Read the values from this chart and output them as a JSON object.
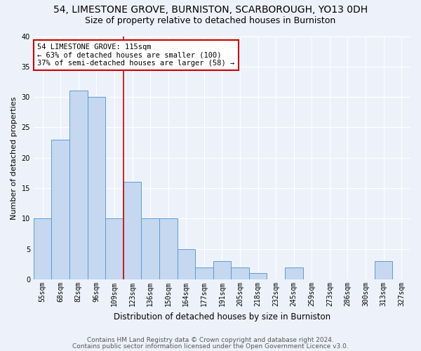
{
  "title1": "54, LIMESTONE GROVE, BURNISTON, SCARBOROUGH, YO13 0DH",
  "title2": "Size of property relative to detached houses in Burniston",
  "xlabel": "Distribution of detached houses by size in Burniston",
  "ylabel": "Number of detached properties",
  "categories": [
    "55sqm",
    "68sqm",
    "82sqm",
    "96sqm",
    "109sqm",
    "123sqm",
    "136sqm",
    "150sqm",
    "164sqm",
    "177sqm",
    "191sqm",
    "205sqm",
    "218sqm",
    "232sqm",
    "245sqm",
    "259sqm",
    "273sqm",
    "286sqm",
    "300sqm",
    "313sqm",
    "327sqm"
  ],
  "values": [
    10,
    23,
    31,
    30,
    10,
    16,
    10,
    10,
    5,
    2,
    3,
    2,
    1,
    0,
    2,
    0,
    0,
    0,
    0,
    3,
    0
  ],
  "bar_color": "#c5d8f0",
  "bar_edge_color": "#5b9bd5",
  "ref_line_x": 4.5,
  "ref_line_color": "#cc0000",
  "annotation_text": "54 LIMESTONE GROVE: 115sqm\n← 63% of detached houses are smaller (100)\n37% of semi-detached houses are larger (58) →",
  "annotation_box_color": "#ffffff",
  "annotation_box_edge_color": "#cc0000",
  "ylim": [
    0,
    40
  ],
  "yticks": [
    0,
    5,
    10,
    15,
    20,
    25,
    30,
    35,
    40
  ],
  "footer1": "Contains HM Land Registry data © Crown copyright and database right 2024.",
  "footer2": "Contains public sector information licensed under the Open Government Licence v3.0.",
  "bg_color": "#edf2fa",
  "grid_color": "#ffffff",
  "title1_fontsize": 10,
  "title2_fontsize": 9,
  "xlabel_fontsize": 8.5,
  "ylabel_fontsize": 8,
  "tick_fontsize": 7,
  "annotation_fontsize": 7.5,
  "footer_fontsize": 6.5
}
